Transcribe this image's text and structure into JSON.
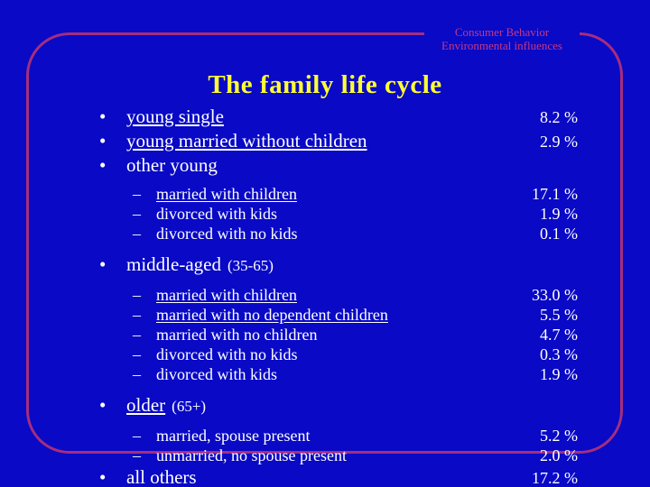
{
  "colors": {
    "background": "#0909c6",
    "frame_border": "#a62d7e",
    "header_text": "#c43a86",
    "title": "#ffff33",
    "body_text": "#ffffff"
  },
  "header": {
    "line1": "Consumer Behavior",
    "line2": "Environmental influences"
  },
  "title": "The family life cycle",
  "bullets": {
    "main_marker": "•",
    "sub_marker": "–"
  },
  "rows": [
    {
      "level": "main",
      "text": "young single",
      "underline": true,
      "pct": "8.2 %"
    },
    {
      "level": "main",
      "text": "young married without children",
      "underline": true,
      "pct": "2.9 %"
    },
    {
      "level": "main",
      "text": "other young",
      "underline": false,
      "pct": ""
    },
    {
      "level": "sub",
      "text": "married with children",
      "underline": true,
      "pct": "17.1 %",
      "group_start": true
    },
    {
      "level": "sub",
      "text": "divorced with kids",
      "underline": false,
      "pct": "1.9 %"
    },
    {
      "level": "sub",
      "text": "divorced with no kids",
      "underline": false,
      "pct": "0.1 %"
    },
    {
      "level": "main",
      "text": "middle-aged",
      "suffix": "(35-65)",
      "underline": false,
      "pct": "",
      "group_start": true
    },
    {
      "level": "sub",
      "text": "married with children",
      "underline": true,
      "pct": "33.0 %",
      "group_start": true
    },
    {
      "level": "sub",
      "text": "married with no dependent children",
      "underline": true,
      "pct": "5.5 %"
    },
    {
      "level": "sub",
      "text": "married with no children",
      "underline": false,
      "pct": "4.7 %"
    },
    {
      "level": "sub",
      "text": "divorced with no kids",
      "underline": false,
      "pct": "0.3 %"
    },
    {
      "level": "sub",
      "text": "divorced with kids",
      "underline": false,
      "pct": "1.9 %"
    },
    {
      "level": "main",
      "text": "older",
      "suffix": "(65+)",
      "underline": true,
      "pct": "",
      "group_start": true
    },
    {
      "level": "sub",
      "text": "married, spouse present",
      "underline": false,
      "pct": "5.2 %",
      "group_start": true
    },
    {
      "level": "sub",
      "text": "unmarried, no spouse present",
      "underline": false,
      "pct": "2.0 %"
    },
    {
      "level": "main",
      "text": "all others",
      "underline": false,
      "pct": "17.2 %"
    }
  ]
}
